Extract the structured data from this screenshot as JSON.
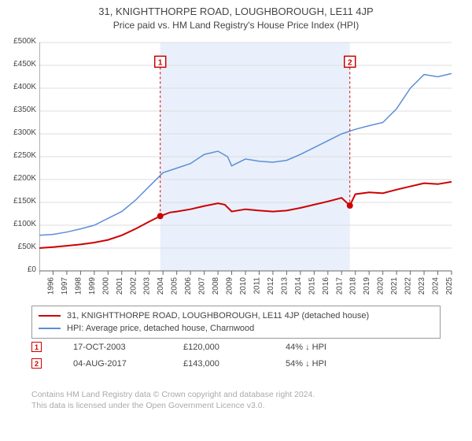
{
  "title_line1": "31, KNIGHTTHORPE ROAD, LOUGHBOROUGH, LE11 4JP",
  "title_line2": "Price paid vs. HM Land Registry's House Price Index (HPI)",
  "chart": {
    "type": "line",
    "bg_color": "#ffffff",
    "band_color": "#e9f0fb",
    "grid_color": "#dddddd",
    "axis_color": "#666666",
    "tick_font_size": 10,
    "tick_color": "#444444",
    "ylim": [
      0,
      500000
    ],
    "ytick_step": 50000,
    "ytick_labels": [
      "£0",
      "£50K",
      "£100K",
      "£150K",
      "£200K",
      "£250K",
      "£300K",
      "£350K",
      "£400K",
      "£450K",
      "£500K"
    ],
    "xlim": [
      1995,
      2025
    ],
    "xticks": [
      1995,
      1996,
      1997,
      1998,
      1999,
      2000,
      2001,
      2002,
      2003,
      2004,
      2005,
      2006,
      2007,
      2008,
      2009,
      2010,
      2011,
      2012,
      2013,
      2014,
      2015,
      2016,
      2017,
      2018,
      2019,
      2020,
      2021,
      2022,
      2023,
      2024,
      2025
    ],
    "band_start": 2003.8,
    "band_end": 2017.6,
    "series": [
      {
        "name": "property",
        "color": "#cc0000",
        "width": 2,
        "points": [
          [
            1995,
            50000
          ],
          [
            1996,
            52000
          ],
          [
            1997,
            55000
          ],
          [
            1998,
            58000
          ],
          [
            1999,
            62000
          ],
          [
            2000,
            68000
          ],
          [
            2001,
            78000
          ],
          [
            2002,
            92000
          ],
          [
            2003,
            108000
          ],
          [
            2003.8,
            120000
          ],
          [
            2004.5,
            128000
          ],
          [
            2005,
            130000
          ],
          [
            2006,
            135000
          ],
          [
            2007,
            142000
          ],
          [
            2008,
            148000
          ],
          [
            2008.5,
            145000
          ],
          [
            2009,
            130000
          ],
          [
            2010,
            135000
          ],
          [
            2011,
            132000
          ],
          [
            2012,
            130000
          ],
          [
            2013,
            132000
          ],
          [
            2014,
            138000
          ],
          [
            2015,
            145000
          ],
          [
            2016,
            152000
          ],
          [
            2017,
            160000
          ],
          [
            2017.6,
            143000
          ],
          [
            2018,
            168000
          ],
          [
            2019,
            172000
          ],
          [
            2020,
            170000
          ],
          [
            2021,
            178000
          ],
          [
            2022,
            185000
          ],
          [
            2023,
            192000
          ],
          [
            2024,
            190000
          ],
          [
            2025,
            195000
          ]
        ]
      },
      {
        "name": "hpi",
        "color": "#5b8fd6",
        "width": 1.5,
        "points": [
          [
            1995,
            78000
          ],
          [
            1996,
            80000
          ],
          [
            1997,
            85000
          ],
          [
            1998,
            92000
          ],
          [
            1999,
            100000
          ],
          [
            2000,
            115000
          ],
          [
            2001,
            130000
          ],
          [
            2002,
            155000
          ],
          [
            2003,
            185000
          ],
          [
            2004,
            215000
          ],
          [
            2005,
            225000
          ],
          [
            2006,
            235000
          ],
          [
            2007,
            255000
          ],
          [
            2008,
            262000
          ],
          [
            2008.7,
            250000
          ],
          [
            2009,
            230000
          ],
          [
            2010,
            245000
          ],
          [
            2011,
            240000
          ],
          [
            2012,
            238000
          ],
          [
            2013,
            242000
          ],
          [
            2014,
            255000
          ],
          [
            2015,
            270000
          ],
          [
            2016,
            285000
          ],
          [
            2017,
            300000
          ],
          [
            2018,
            310000
          ],
          [
            2019,
            318000
          ],
          [
            2020,
            325000
          ],
          [
            2021,
            355000
          ],
          [
            2022,
            400000
          ],
          [
            2023,
            430000
          ],
          [
            2024,
            425000
          ],
          [
            2025,
            432000
          ]
        ]
      }
    ],
    "markers": [
      {
        "n": "1",
        "x": 2003.8,
        "y": 120000,
        "color": "#cc0000",
        "label_y": 458000
      },
      {
        "n": "2",
        "x": 2017.6,
        "y": 143000,
        "color": "#cc0000",
        "label_y": 458000
      }
    ]
  },
  "legend": {
    "items": [
      {
        "color": "#cc0000",
        "label": "31, KNIGHTTHORPE ROAD, LOUGHBOROUGH, LE11 4JP (detached house)"
      },
      {
        "color": "#5b8fd6",
        "label": "HPI: Average price, detached house, Charnwood"
      }
    ]
  },
  "sales": {
    "rows": [
      {
        "n": "1",
        "date": "17-OCT-2003",
        "price": "£120,000",
        "pct": "44% ↓ HPI",
        "color": "#cc0000"
      },
      {
        "n": "2",
        "date": "04-AUG-2017",
        "price": "£143,000",
        "pct": "54% ↓ HPI",
        "color": "#cc0000"
      }
    ]
  },
  "footer": {
    "line1": "Contains HM Land Registry data © Crown copyright and database right 2024.",
    "line2": "This data is licensed under the Open Government Licence v3.0."
  }
}
